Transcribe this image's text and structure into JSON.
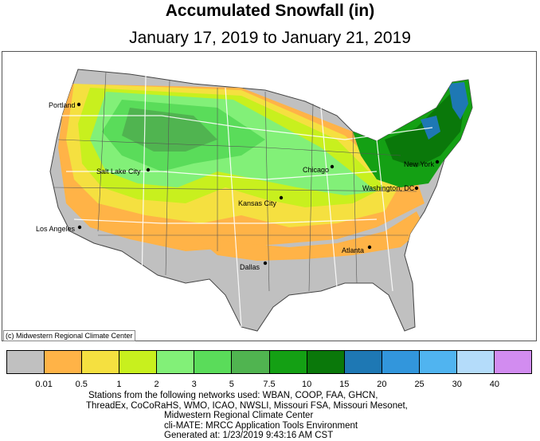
{
  "title": "Accumulated Snowfall (in)",
  "subtitle": "January 17, 2019 to January 21, 2019",
  "credit": "(c) Midwestern Regional Climate Center",
  "cities": [
    {
      "name": "Portland"
    },
    {
      "name": "Salt Lake City"
    },
    {
      "name": "Los Angeles"
    },
    {
      "name": "Kansas City"
    },
    {
      "name": "Dallas"
    },
    {
      "name": "Chicago"
    },
    {
      "name": "Atlanta"
    },
    {
      "name": "Washington, DC"
    },
    {
      "name": "New York"
    }
  ],
  "legend": {
    "colors": [
      "#c0c0c0",
      "#ffb347",
      "#f5e040",
      "#c8f01e",
      "#82f078",
      "#5adc5a",
      "#50b450",
      "#14a014",
      "#0a780a",
      "#1e78b4",
      "#3296dc",
      "#50b4f0",
      "#b4dcfa",
      "#d28cf0"
    ],
    "ticks": [
      "0.01",
      "0.5",
      "1",
      "2",
      "3",
      "5",
      "7.5",
      "10",
      "15",
      "20",
      "25",
      "30",
      "40"
    ]
  },
  "footer": {
    "line1": "Stations from the following networks used: WBAN, COOP, FAA, GHCN,",
    "line2": "ThreadEx, CoCoRaHS, WMO, ICAO, NWSLI, Missouri FSA, Missouri Mesonet,",
    "line3": "Midwestern Regional Climate Center",
    "line4": "cli-MATE: MRCC Application Tools Environment",
    "line5": "Generated at: 1/23/2019 9:43:16 AM CST"
  }
}
